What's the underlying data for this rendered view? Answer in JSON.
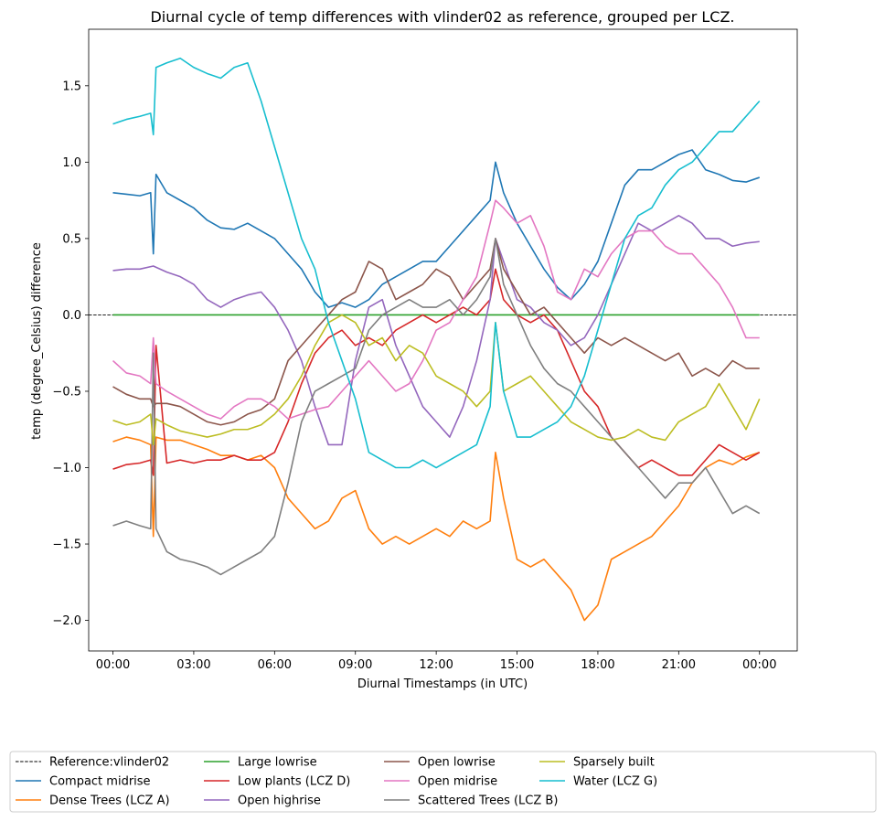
{
  "chart_data": {
    "type": "line",
    "title": "Diurnal cycle of temp differences with vlinder02 as reference, grouped per LCZ.",
    "xlabel": "Diurnal Timestamps (in UTC)",
    "ylabel": "temp (degree_Celsius) difference",
    "x_range_hours": [
      -0.9,
      25.4
    ],
    "xticks": [
      {
        "hour": 0,
        "label": "00:00"
      },
      {
        "hour": 3,
        "label": "03:00"
      },
      {
        "hour": 6,
        "label": "06:00"
      },
      {
        "hour": 9,
        "label": "09:00"
      },
      {
        "hour": 12,
        "label": "12:00"
      },
      {
        "hour": 15,
        "label": "15:00"
      },
      {
        "hour": 18,
        "label": "18:00"
      },
      {
        "hour": 21,
        "label": "21:00"
      },
      {
        "hour": 24,
        "label": "00:00"
      }
    ],
    "ylim": [
      -2.2,
      1.87
    ],
    "yticks": [
      {
        "value": 1.5,
        "label": "1.5"
      },
      {
        "value": 1.0,
        "label": "1.0"
      },
      {
        "value": 0.5,
        "label": "0.5"
      },
      {
        "value": 0.0,
        "label": "0.0"
      },
      {
        "value": -0.5,
        "label": "−0.5"
      },
      {
        "value": -1.0,
        "label": "−1.0"
      },
      {
        "value": -1.5,
        "label": "−1.5"
      },
      {
        "value": -2.0,
        "label": "−2.0"
      }
    ],
    "grid": false,
    "legend_position": "below",
    "reference": {
      "name": "Reference:vlinder02",
      "color": "#000000",
      "style": "dashed",
      "value": 0
    },
    "series": [
      {
        "name": "Compact midrise",
        "color": "#1f77b4",
        "x": [
          0,
          0.5,
          1,
          1.4,
          1.5,
          1.6,
          2,
          2.5,
          3,
          3.5,
          4,
          4.5,
          5,
          5.5,
          6,
          6.5,
          7,
          7.5,
          8,
          8.5,
          9,
          9.5,
          10,
          10.5,
          11,
          11.5,
          12,
          12.5,
          13,
          13.5,
          14,
          14.2,
          14.5,
          15,
          15.5,
          16,
          16.5,
          17,
          17.5,
          18,
          18.5,
          19,
          19.5,
          20,
          20.5,
          21,
          21.5,
          22,
          22.5,
          23,
          23.5,
          24
        ],
        "y": [
          0.8,
          0.79,
          0.78,
          0.8,
          0.4,
          0.92,
          0.8,
          0.75,
          0.7,
          0.62,
          0.57,
          0.56,
          0.6,
          0.55,
          0.5,
          0.4,
          0.3,
          0.15,
          0.05,
          0.08,
          0.05,
          0.1,
          0.2,
          0.25,
          0.3,
          0.35,
          0.35,
          0.45,
          0.55,
          0.65,
          0.75,
          1.0,
          0.8,
          0.6,
          0.45,
          0.3,
          0.18,
          0.1,
          0.2,
          0.35,
          0.6,
          0.85,
          0.95,
          0.95,
          1.0,
          1.05,
          1.08,
          0.95,
          0.92,
          0.88,
          0.87,
          0.9
        ]
      },
      {
        "name": "Dense Trees (LCZ A)",
        "color": "#ff7f0e",
        "x": [
          0,
          0.5,
          1,
          1.4,
          1.5,
          1.6,
          2,
          2.5,
          3,
          3.5,
          4,
          4.5,
          5,
          5.5,
          6,
          6.5,
          7,
          7.5,
          8,
          8.5,
          9,
          9.5,
          10,
          10.5,
          11,
          11.5,
          12,
          12.5,
          13,
          13.5,
          14,
          14.2,
          14.5,
          15,
          15.5,
          16,
          16.5,
          17,
          17.5,
          18,
          18.5,
          19,
          19.5,
          20,
          20.5,
          21,
          21.5,
          22,
          22.5,
          23,
          23.5,
          24
        ],
        "y": [
          -0.83,
          -0.8,
          -0.82,
          -0.85,
          -1.45,
          -0.8,
          -0.82,
          -0.82,
          -0.85,
          -0.88,
          -0.92,
          -0.92,
          -0.95,
          -0.92,
          -1.0,
          -1.2,
          -1.3,
          -1.4,
          -1.35,
          -1.2,
          -1.15,
          -1.4,
          -1.5,
          -1.45,
          -1.5,
          -1.45,
          -1.4,
          -1.45,
          -1.35,
          -1.4,
          -1.35,
          -0.9,
          -1.2,
          -1.6,
          -1.65,
          -1.6,
          -1.7,
          -1.8,
          -2.0,
          -1.9,
          -1.6,
          -1.55,
          -1.5,
          -1.45,
          -1.35,
          -1.25,
          -1.1,
          -1.0,
          -0.95,
          -0.98,
          -0.93,
          -0.9
        ]
      },
      {
        "name": "Large lowrise",
        "color": "#2ca02c",
        "x": [
          0,
          24
        ],
        "y": [
          0,
          0
        ]
      },
      {
        "name": "Low plants (LCZ D)",
        "color": "#d62728",
        "x": [
          0,
          0.5,
          1,
          1.4,
          1.5,
          1.6,
          2,
          2.5,
          3,
          3.5,
          4,
          4.5,
          5,
          5.5,
          6,
          6.5,
          7,
          7.5,
          8,
          8.5,
          9,
          9.5,
          10,
          10.5,
          11,
          11.5,
          12,
          12.5,
          13,
          13.5,
          14,
          14.2,
          14.5,
          15,
          15.5,
          16,
          16.5,
          17,
          17.5,
          18,
          18.5,
          19,
          19.5,
          20,
          20.5,
          21,
          21.5,
          22,
          22.5,
          23,
          23.5,
          24
        ],
        "y": [
          -1.01,
          -0.98,
          -0.97,
          -0.95,
          -1.05,
          -0.2,
          -0.97,
          -0.95,
          -0.97,
          -0.95,
          -0.95,
          -0.92,
          -0.95,
          -0.95,
          -0.9,
          -0.7,
          -0.45,
          -0.25,
          -0.15,
          -0.1,
          -0.2,
          -0.15,
          -0.2,
          -0.1,
          -0.05,
          0.0,
          -0.05,
          0.0,
          0.05,
          0.0,
          0.1,
          0.3,
          0.1,
          0.0,
          -0.05,
          0.0,
          -0.1,
          -0.3,
          -0.5,
          -0.6,
          -0.8,
          -0.9,
          -1.0,
          -0.95,
          -1.0,
          -1.05,
          -1.05,
          -0.95,
          -0.85,
          -0.9,
          -0.95,
          -0.9
        ]
      },
      {
        "name": "Open highrise",
        "color": "#9467bd",
        "x": [
          0,
          0.5,
          1,
          1.5,
          2,
          2.5,
          3,
          3.5,
          4,
          4.5,
          5,
          5.5,
          6,
          6.5,
          7,
          7.5,
          8,
          8.5,
          9,
          9.5,
          10,
          10.5,
          11,
          11.5,
          12,
          12.5,
          13,
          13.5,
          14,
          14.2,
          14.5,
          15,
          15.5,
          16,
          16.5,
          17,
          17.5,
          18,
          18.5,
          19,
          19.5,
          20,
          20.5,
          21,
          21.5,
          22,
          22.5,
          23,
          23.5,
          24
        ],
        "y": [
          0.29,
          0.3,
          0.3,
          0.32,
          0.28,
          0.25,
          0.2,
          0.1,
          0.05,
          0.1,
          0.13,
          0.15,
          0.05,
          -0.1,
          -0.3,
          -0.6,
          -0.85,
          -0.85,
          -0.3,
          0.05,
          0.1,
          -0.2,
          -0.4,
          -0.6,
          -0.7,
          -0.8,
          -0.6,
          -0.3,
          0.1,
          0.5,
          0.35,
          0.1,
          0.05,
          -0.05,
          -0.1,
          -0.2,
          -0.15,
          0.0,
          0.2,
          0.4,
          0.6,
          0.55,
          0.6,
          0.65,
          0.6,
          0.5,
          0.5,
          0.45,
          0.47,
          0.48
        ]
      },
      {
        "name": "Open lowrise",
        "color": "#8c564b",
        "x": [
          0,
          0.5,
          1,
          1.4,
          1.5,
          1.6,
          2,
          2.5,
          3,
          3.5,
          4,
          4.5,
          5,
          5.5,
          6,
          6.5,
          7,
          7.5,
          8,
          8.5,
          9,
          9.5,
          10,
          10.5,
          11,
          11.5,
          12,
          12.5,
          13,
          13.5,
          14,
          14.2,
          14.5,
          15,
          15.5,
          16,
          16.5,
          17,
          17.5,
          18,
          18.5,
          19,
          19.5,
          20,
          20.5,
          21,
          21.5,
          22,
          22.5,
          23,
          23.5,
          24
        ],
        "y": [
          -0.47,
          -0.52,
          -0.55,
          -0.55,
          -0.6,
          -0.58,
          -0.58,
          -0.6,
          -0.65,
          -0.7,
          -0.72,
          -0.7,
          -0.65,
          -0.62,
          -0.55,
          -0.3,
          -0.2,
          -0.1,
          0.0,
          0.1,
          0.15,
          0.35,
          0.3,
          0.1,
          0.15,
          0.2,
          0.3,
          0.25,
          0.1,
          0.2,
          0.3,
          0.5,
          0.3,
          0.15,
          0.0,
          0.05,
          -0.05,
          -0.15,
          -0.25,
          -0.15,
          -0.2,
          -0.15,
          -0.2,
          -0.25,
          -0.3,
          -0.25,
          -0.4,
          -0.35,
          -0.4,
          -0.3,
          -0.35,
          -0.35
        ]
      },
      {
        "name": "Open midrise",
        "color": "#e377c2",
        "x": [
          0,
          0.5,
          1,
          1.4,
          1.5,
          1.6,
          2,
          2.5,
          3,
          3.5,
          4,
          4.5,
          5,
          5.5,
          6,
          6.5,
          7,
          7.5,
          8,
          8.5,
          9,
          9.5,
          10,
          10.5,
          11,
          11.5,
          12,
          12.5,
          13,
          13.5,
          14,
          14.2,
          14.5,
          15,
          15.5,
          16,
          16.5,
          17,
          17.5,
          18,
          18.5,
          19,
          19.5,
          20,
          20.5,
          21,
          21.5,
          22,
          22.5,
          23,
          23.5,
          24
        ],
        "y": [
          -0.3,
          -0.38,
          -0.4,
          -0.45,
          -0.15,
          -0.45,
          -0.5,
          -0.55,
          -0.6,
          -0.65,
          -0.68,
          -0.6,
          -0.55,
          -0.55,
          -0.6,
          -0.68,
          -0.65,
          -0.62,
          -0.6,
          -0.5,
          -0.4,
          -0.3,
          -0.4,
          -0.5,
          -0.45,
          -0.3,
          -0.1,
          -0.05,
          0.1,
          0.25,
          0.6,
          0.75,
          0.7,
          0.6,
          0.65,
          0.45,
          0.15,
          0.1,
          0.3,
          0.25,
          0.4,
          0.5,
          0.55,
          0.55,
          0.45,
          0.4,
          0.4,
          0.3,
          0.2,
          0.05,
          -0.15,
          -0.15
        ]
      },
      {
        "name": "Scattered Trees (LCZ B)",
        "color": "#7f7f7f",
        "x": [
          0,
          0.5,
          1,
          1.4,
          1.5,
          1.6,
          2,
          2.5,
          3,
          3.5,
          4,
          4.5,
          5,
          5.5,
          6,
          6.5,
          7,
          7.5,
          8,
          8.5,
          9,
          9.5,
          10,
          10.5,
          11,
          11.5,
          12,
          12.5,
          13,
          13.5,
          14,
          14.2,
          14.5,
          15,
          15.5,
          16,
          16.5,
          17,
          17.5,
          18,
          18.5,
          19,
          19.5,
          20,
          20.5,
          21,
          21.5,
          22,
          22.5,
          23,
          23.5,
          24
        ],
        "y": [
          -1.38,
          -1.35,
          -1.38,
          -1.4,
          -0.25,
          -1.4,
          -1.55,
          -1.6,
          -1.62,
          -1.65,
          -1.7,
          -1.65,
          -1.6,
          -1.55,
          -1.45,
          -1.1,
          -0.7,
          -0.5,
          -0.45,
          -0.4,
          -0.35,
          -0.1,
          0.0,
          0.05,
          0.1,
          0.05,
          0.05,
          0.1,
          0.0,
          0.1,
          0.25,
          0.5,
          0.2,
          0.0,
          -0.2,
          -0.35,
          -0.45,
          -0.5,
          -0.6,
          -0.7,
          -0.8,
          -0.9,
          -1.0,
          -1.1,
          -1.2,
          -1.1,
          -1.1,
          -1.0,
          -1.15,
          -1.3,
          -1.25,
          -1.3
        ]
      },
      {
        "name": "Sparsely built",
        "color": "#bcbd22",
        "x": [
          0,
          0.5,
          1,
          1.4,
          1.5,
          1.6,
          2,
          2.5,
          3,
          3.5,
          4,
          4.5,
          5,
          5.5,
          6,
          6.5,
          7,
          7.5,
          8,
          8.5,
          9,
          9.5,
          10,
          10.5,
          11,
          11.5,
          12,
          12.5,
          13,
          13.5,
          14,
          14.2,
          14.5,
          15,
          15.5,
          16,
          16.5,
          17,
          17.5,
          18,
          18.5,
          19,
          19.5,
          20,
          20.5,
          21,
          21.5,
          22,
          22.5,
          23,
          23.5,
          24
        ],
        "y": [
          -0.69,
          -0.72,
          -0.7,
          -0.65,
          -0.85,
          -0.68,
          -0.72,
          -0.76,
          -0.78,
          -0.8,
          -0.78,
          -0.75,
          -0.75,
          -0.72,
          -0.65,
          -0.55,
          -0.4,
          -0.2,
          -0.05,
          0.0,
          -0.05,
          -0.2,
          -0.15,
          -0.3,
          -0.2,
          -0.25,
          -0.4,
          -0.45,
          -0.5,
          -0.6,
          -0.5,
          -0.05,
          -0.5,
          -0.45,
          -0.4,
          -0.5,
          -0.6,
          -0.7,
          -0.75,
          -0.8,
          -0.82,
          -0.8,
          -0.75,
          -0.8,
          -0.82,
          -0.7,
          -0.65,
          -0.6,
          -0.45,
          -0.6,
          -0.75,
          -0.55
        ]
      },
      {
        "name": "Water (LCZ G)",
        "color": "#17becf",
        "x": [
          0,
          0.5,
          1,
          1.4,
          1.5,
          1.6,
          2,
          2.5,
          3,
          3.5,
          4,
          4.5,
          5,
          5.5,
          6,
          6.5,
          7,
          7.5,
          8,
          8.5,
          9,
          9.5,
          10,
          10.5,
          11,
          11.5,
          12,
          12.5,
          13,
          13.5,
          14,
          14.2,
          14.5,
          15,
          15.5,
          16,
          16.5,
          17,
          17.5,
          18,
          18.5,
          19,
          19.5,
          20,
          20.5,
          21,
          21.5,
          22,
          22.5,
          23,
          23.5,
          24
        ],
        "y": [
          1.25,
          1.28,
          1.3,
          1.32,
          1.18,
          1.62,
          1.65,
          1.68,
          1.62,
          1.58,
          1.55,
          1.62,
          1.65,
          1.4,
          1.1,
          0.8,
          0.5,
          0.3,
          -0.05,
          -0.3,
          -0.55,
          -0.9,
          -0.95,
          -1.0,
          -1.0,
          -0.95,
          -1.0,
          -0.95,
          -0.9,
          -0.85,
          -0.6,
          -0.05,
          -0.5,
          -0.8,
          -0.8,
          -0.75,
          -0.7,
          -0.6,
          -0.4,
          -0.1,
          0.2,
          0.5,
          0.65,
          0.7,
          0.85,
          0.95,
          1.0,
          1.1,
          1.2,
          1.2,
          1.3,
          1.4
        ]
      }
    ]
  }
}
